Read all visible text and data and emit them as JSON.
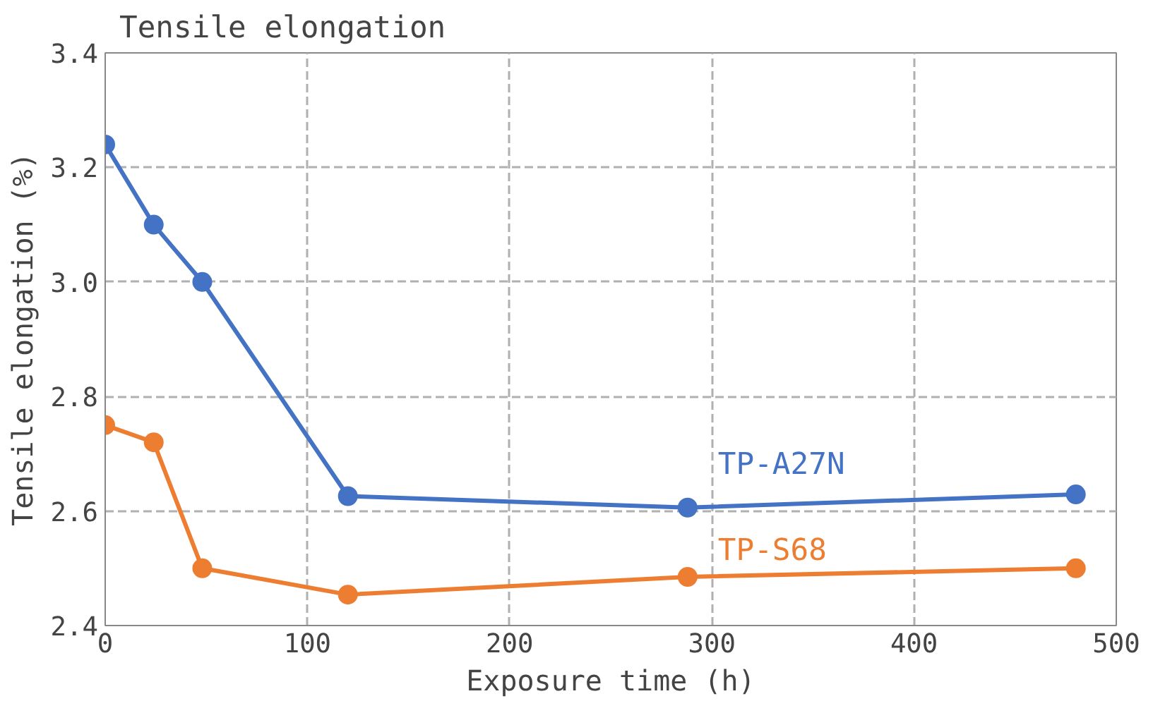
{
  "chart_data": {
    "type": "line",
    "title": "Tensile elongation",
    "xlabel": "Exposure time (h)",
    "ylabel": "Tensile elongation (%)",
    "xlim": [
      0,
      500
    ],
    "xticks": [
      0,
      100,
      200,
      300,
      400,
      500
    ],
    "ylim": [
      2.4,
      3.4
    ],
    "yticks": [
      {
        "value": 2.4,
        "label": "2.4"
      },
      {
        "value": 2.6,
        "label": "2.6"
      },
      {
        "value": 2.8,
        "label": "2.8"
      },
      {
        "value": 3.0,
        "label": "3.0"
      },
      {
        "value": 3.2,
        "label": "3.2"
      },
      {
        "value": 3.4,
        "label": "3.4"
      }
    ],
    "x": [
      0,
      24,
      48,
      120,
      288,
      480
    ],
    "series": [
      {
        "name": "TP-A27N",
        "color": "#4472c4",
        "values": [
          3.24,
          3.1,
          3.0,
          2.626,
          2.606,
          2.629
        ]
      },
      {
        "name": "TP-S68",
        "color": "#ed7d31",
        "values": [
          2.75,
          2.72,
          2.5,
          2.454,
          2.485,
          2.5
        ]
      }
    ],
    "grid": true,
    "marker": "circle",
    "line_style": "solid"
  }
}
